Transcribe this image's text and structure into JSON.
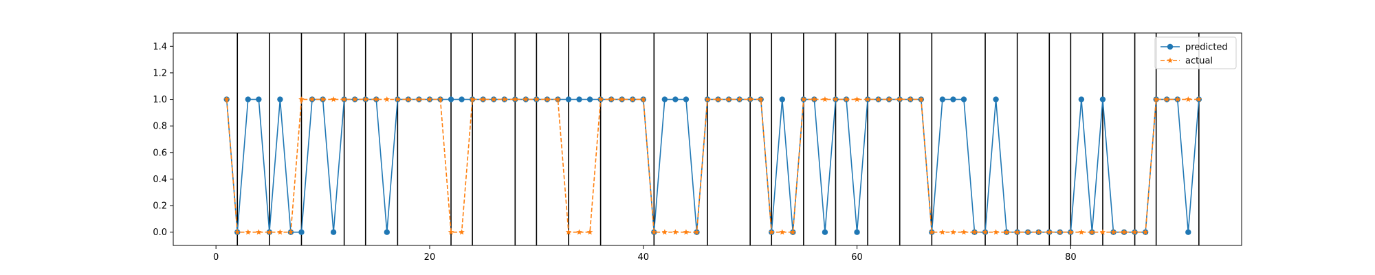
{
  "chart_data": {
    "type": "line",
    "xlim": [
      -4,
      96
    ],
    "ylim": [
      -0.1,
      1.5
    ],
    "xticks": [
      0,
      20,
      40,
      60,
      80
    ],
    "yticks": [
      0.0,
      0.2,
      0.4,
      0.6,
      0.8,
      1.0,
      1.2,
      1.4
    ],
    "xtick_labels": [
      "0",
      "20",
      "40",
      "60",
      "80"
    ],
    "ytick_labels": [
      "0.0",
      "0.2",
      "0.4",
      "0.6",
      "0.8",
      "1.0",
      "1.2",
      "1.4"
    ],
    "grid": false,
    "legend_position": "top-right",
    "vertical_lines": [
      2,
      5,
      8,
      12,
      14,
      17,
      22,
      24,
      28,
      30,
      33,
      36,
      41,
      46,
      50,
      52,
      55,
      58,
      61,
      64,
      67,
      72,
      75,
      78,
      80,
      83,
      86,
      88,
      92
    ],
    "x": [
      1,
      2,
      3,
      4,
      5,
      6,
      7,
      8,
      9,
      10,
      11,
      12,
      13,
      14,
      15,
      16,
      17,
      18,
      19,
      20,
      21,
      22,
      23,
      24,
      25,
      26,
      27,
      28,
      29,
      30,
      31,
      32,
      33,
      34,
      35,
      36,
      37,
      38,
      39,
      40,
      41,
      42,
      43,
      44,
      45,
      46,
      47,
      48,
      49,
      50,
      51,
      52,
      53,
      54,
      55,
      56,
      57,
      58,
      59,
      60,
      61,
      62,
      63,
      64,
      65,
      66,
      67,
      68,
      69,
      70,
      71,
      72,
      73,
      74,
      75,
      76,
      77,
      78,
      79,
      80,
      81,
      82,
      83,
      84,
      85,
      86,
      87,
      88,
      89,
      90,
      91,
      92
    ],
    "series": [
      {
        "name": "predicted",
        "color": "#1f77b4",
        "linestyle": "solid",
        "marker": "circle",
        "values": [
          1,
          0,
          1,
          1,
          0,
          1,
          0,
          0,
          1,
          1,
          0,
          1,
          1,
          1,
          1,
          0,
          1,
          1,
          1,
          1,
          1,
          1,
          1,
          1,
          1,
          1,
          1,
          1,
          1,
          1,
          1,
          1,
          1,
          1,
          1,
          1,
          1,
          1,
          1,
          1,
          0,
          1,
          1,
          1,
          0,
          1,
          1,
          1,
          1,
          1,
          1,
          0,
          1,
          0,
          1,
          1,
          0,
          1,
          1,
          0,
          1,
          1,
          1,
          1,
          1,
          1,
          0,
          1,
          1,
          1,
          0,
          0,
          1,
          0,
          0,
          0,
          0,
          0,
          0,
          0,
          1,
          0,
          1,
          0,
          0,
          0,
          0,
          1,
          1,
          1,
          0,
          1
        ]
      },
      {
        "name": "actual",
        "color": "#ff7f0e",
        "linestyle": "dashed",
        "marker": "star",
        "values": [
          1,
          0,
          0,
          0,
          0,
          0,
          0,
          1,
          1,
          1,
          1,
          1,
          1,
          1,
          1,
          1,
          1,
          1,
          1,
          1,
          1,
          0,
          0,
          1,
          1,
          1,
          1,
          1,
          1,
          1,
          1,
          1,
          0,
          0,
          0,
          1,
          1,
          1,
          1,
          1,
          0,
          0,
          0,
          0,
          0,
          1,
          1,
          1,
          1,
          1,
          1,
          0,
          0,
          0,
          1,
          1,
          1,
          1,
          1,
          1,
          1,
          1,
          1,
          1,
          1,
          1,
          0,
          0,
          0,
          0,
          0,
          0,
          0,
          0,
          0,
          0,
          0,
          0,
          0,
          0,
          0,
          0,
          0,
          0,
          0,
          0,
          0,
          1,
          1,
          1,
          1,
          1
        ]
      }
    ]
  }
}
